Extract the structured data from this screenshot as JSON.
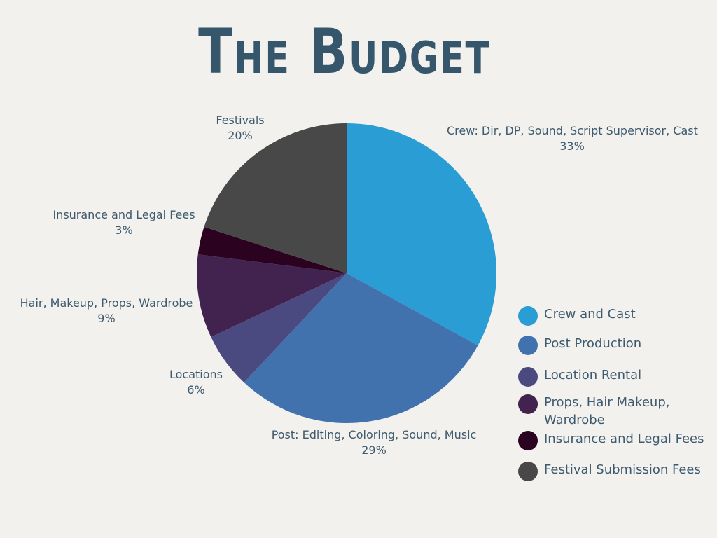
{
  "title": "The Budget",
  "chart_data": {
    "type": "pie",
    "slices": [
      {
        "label": "Crew: Dir, DP, Sound, Script Supervisor, Cast",
        "percent_label": "33%",
        "value": 33,
        "color": "#2a9dd4"
      },
      {
        "label": "Post: Editing, Coloring, Sound, Music",
        "percent_label": "29%",
        "value": 29,
        "color": "#4272ae"
      },
      {
        "label": "Locations",
        "percent_label": "6%",
        "value": 6,
        "color": "#4b4a80"
      },
      {
        "label": "Hair, Makeup, Props, Wardrobe",
        "percent_label": "9%",
        "value": 9,
        "color": "#42234f"
      },
      {
        "label": "Insurance and Legal Fees",
        "percent_label": "3%",
        "value": 3,
        "color": "#2b0320"
      },
      {
        "label": "Festivals",
        "percent_label": "20%",
        "value": 20,
        "color": "#484848"
      }
    ],
    "start_angle": "12 o'clock",
    "direction": "clockwise",
    "legend_placement": "right",
    "legend": [
      {
        "label": "Crew and Cast",
        "color": "#2a9dd4"
      },
      {
        "label": "Post Production",
        "color": "#4272ae"
      },
      {
        "label": "Location Rental",
        "color": "#4b4a80"
      },
      {
        "label": "Props, Hair Makeup, Wardrobe",
        "color": "#42234f"
      },
      {
        "label": "Insurance and Legal Fees",
        "color": "#2b0320"
      },
      {
        "label": "Festival Submission Fees",
        "color": "#484848"
      }
    ]
  }
}
